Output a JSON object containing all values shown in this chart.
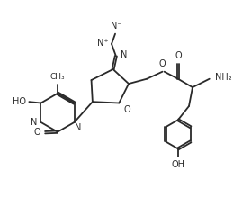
{
  "bg_color": "#ffffff",
  "line_color": "#2a2a2a",
  "line_width": 1.3,
  "font_size": 7.0,
  "figsize": [
    2.7,
    2.29
  ],
  "dpi": 100,
  "xlim": [
    0,
    10
  ],
  "ylim": [
    0,
    8.5
  ]
}
